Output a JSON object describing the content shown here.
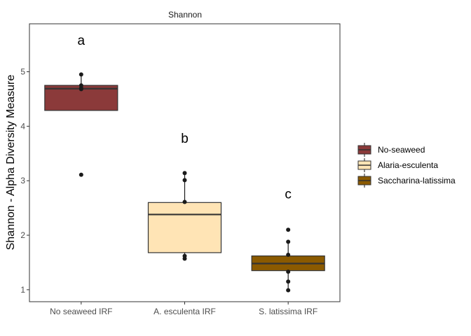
{
  "chart_data": {
    "type": "box",
    "title": "Shannon",
    "ylabel": "Shannon - Alpha Diversity Measure",
    "xlabel": "",
    "ylim": [
      0.78,
      5.88
    ],
    "yticks": [
      1,
      2,
      3,
      4,
      5
    ],
    "categories": [
      "No seaweed IRF",
      "A. esculenta IRF",
      "S. latissima IRF"
    ],
    "groups": [
      {
        "legend": "No-seaweed",
        "color": "#8B3A3A",
        "q1": 4.29,
        "median": 4.69,
        "q3": 4.75,
        "whisker_low": 4.29,
        "whisker_high": 4.95,
        "points": [
          4.95,
          4.75,
          4.7,
          4.68,
          3.11
        ],
        "letter": "a",
        "letter_y": 5.57
      },
      {
        "legend": "Alaria-esculenta",
        "color": "#FFE4B5",
        "q1": 1.68,
        "median": 2.38,
        "q3": 2.6,
        "whisker_low": 1.57,
        "whisker_high": 3.14,
        "points": [
          3.14,
          3.01,
          2.61,
          1.62,
          1.57
        ],
        "letter": "b",
        "letter_y": 3.77
      },
      {
        "legend": "Saccharina-latissima",
        "color": "#8B5A00",
        "q1": 1.35,
        "median": 1.48,
        "q3": 1.62,
        "whisker_low": 0.99,
        "whisker_high": 1.88,
        "points": [
          2.1,
          1.88,
          1.64,
          1.33,
          1.15,
          0.99
        ],
        "letter": "c",
        "letter_y": 2.75
      }
    ],
    "legend_position": "right",
    "grid": false
  }
}
